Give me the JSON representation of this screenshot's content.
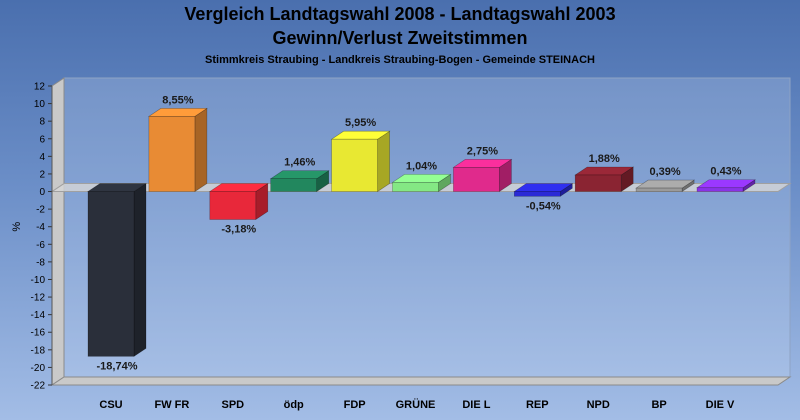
{
  "header": {
    "title_line1": "Vergleich Landtagswahl 2008 - Landtagswahl 2003",
    "title_line2": "Gewinn/Verlust Zweitstimmen",
    "subtitle": "Stimmkreis Straubing - Landkreis Straubing-Bogen - Gemeinde STEINACH"
  },
  "chart_data": {
    "type": "bar",
    "title": "Vergleich Landtagswahl 2008 - Landtagswahl 2003 / Gewinn/Verlust Zweitstimmen",
    "subtitle": "Stimmkreis Straubing - Landkreis Straubing-Bogen - Gemeinde STEINACH",
    "ylabel": "%",
    "xlabel": "",
    "ylim": [
      -22,
      12
    ],
    "yticks": [
      12,
      10,
      8,
      6,
      4,
      2,
      0,
      -2,
      -4,
      -6,
      -8,
      -10,
      -12,
      -14,
      -16,
      -18,
      -20,
      -22
    ],
    "grid": false,
    "categories": [
      "CSU",
      "FW FR",
      "SPD",
      "ödp",
      "FDP",
      "GRÜNE",
      "DIE L",
      "REP",
      "NPD",
      "BP",
      "DIE V"
    ],
    "values": [
      -18.74,
      8.55,
      -3.18,
      1.46,
      5.95,
      1.04,
      2.75,
      -0.54,
      1.88,
      0.39,
      0.43
    ],
    "labels": [
      "-18,74%",
      "8,55%",
      "-3,18%",
      "1,46%",
      "5,95%",
      "1,04%",
      "2,75%",
      "-0,54%",
      "1,88%",
      "0,39%",
      "0,43%"
    ],
    "colors": [
      "#2a2f3a",
      "#e88b34",
      "#e8283a",
      "#22875e",
      "#e8e832",
      "#84e884",
      "#e02a8c",
      "#2a2ad6",
      "#8a2432",
      "#9a9a9a",
      "#8a32e8"
    ]
  }
}
